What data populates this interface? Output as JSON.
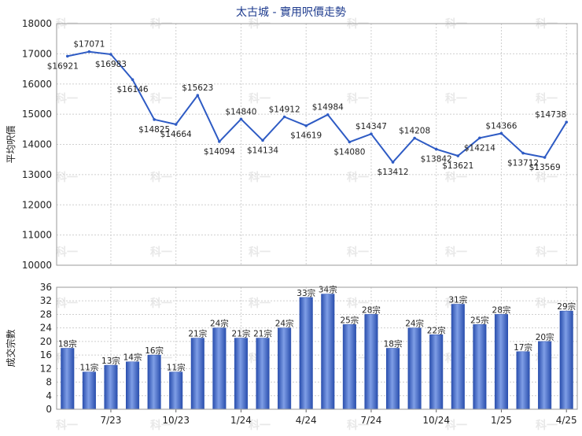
{
  "chart_data": [
    {
      "type": "line",
      "title": "太古城 - 實用呎價走勢",
      "ylabel": "平均呎價",
      "ylim": [
        10000,
        18000
      ],
      "yticks": [
        10000,
        11000,
        12000,
        13000,
        14000,
        15000,
        16000,
        17000,
        18000
      ],
      "grid": true,
      "series": [
        {
          "values": [
            16921,
            17071,
            16983,
            16146,
            14825,
            14664,
            15623,
            14094,
            14840,
            14134,
            14912,
            14619,
            14984,
            14080,
            14347,
            13412,
            14208,
            13842,
            13621,
            14214,
            14366,
            13712,
            13569,
            14738
          ],
          "labels": [
            "$16921",
            "$17071",
            "$16983",
            "$16146",
            "$14825",
            "$14664",
            "$15623",
            "$14094",
            "$14840",
            "$14134",
            "$14912",
            "$14619",
            "$14984",
            "$14080",
            "$14347",
            "$13412",
            "$14208",
            "$13842",
            "$13621",
            "$14214",
            "$14366",
            "$13712",
            "$13569",
            "$14738"
          ]
        }
      ],
      "color": "#2e5bc4"
    },
    {
      "type": "bar",
      "ylabel": "成交宗數",
      "ylim": [
        0,
        36
      ],
      "yticks": [
        0,
        4,
        8,
        12,
        16,
        20,
        24,
        28,
        32,
        36
      ],
      "grid": true,
      "values": [
        18,
        11,
        13,
        14,
        16,
        11,
        21,
        24,
        21,
        21,
        24,
        33,
        34,
        25,
        28,
        18,
        24,
        22,
        31,
        25,
        28,
        17,
        20,
        29
      ],
      "labels": [
        "18宗",
        "11宗",
        "13宗",
        "14宗",
        "16宗",
        "11宗",
        "21宗",
        "24宗",
        "21宗",
        "21宗",
        "24宗",
        "33宗",
        "34宗",
        "25宗",
        "28宗",
        "18宗",
        "24宗",
        "22宗",
        "31宗",
        "25宗",
        "28宗",
        "17宗",
        "20宗",
        "29宗"
      ],
      "xtick_labels": [
        {
          "index": 2,
          "label": "7/23"
        },
        {
          "index": 5,
          "label": "10/23"
        },
        {
          "index": 8,
          "label": "1/24"
        },
        {
          "index": 11,
          "label": "4/24"
        },
        {
          "index": 14,
          "label": "7/24"
        },
        {
          "index": 17,
          "label": "10/24"
        },
        {
          "index": 20,
          "label": "1/25"
        },
        {
          "index": 23,
          "label": "4/25"
        }
      ],
      "color": "#3a64c8"
    }
  ],
  "watermark": "科一"
}
